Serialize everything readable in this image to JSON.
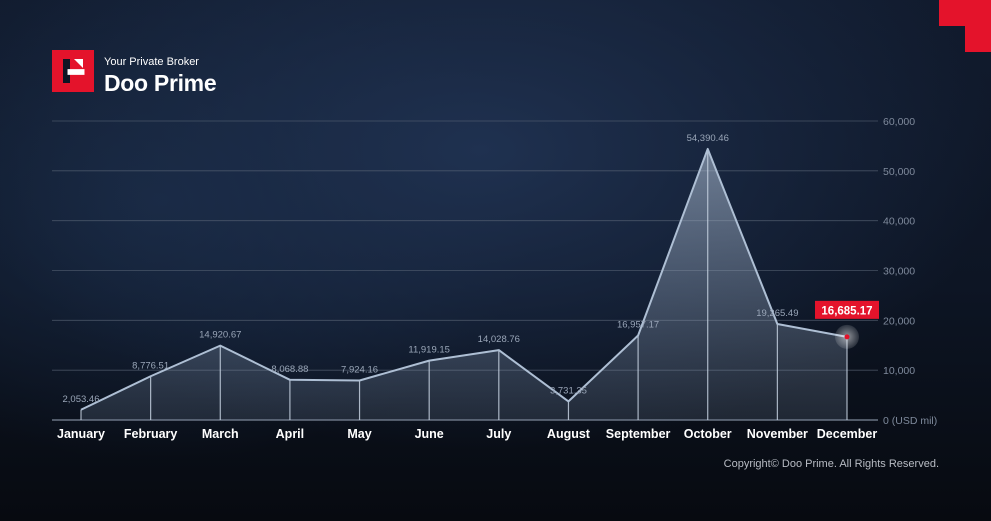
{
  "brand": {
    "tagline": "Your Private Broker",
    "name": "Doo Prime",
    "accent_color": "#e4132b"
  },
  "footer": {
    "copyright": "Copyright© Doo Prime. All Rights Reserved."
  },
  "chart_data": {
    "type": "area",
    "title": "",
    "xlabel": "",
    "ylabel": "",
    "y_unit_label": "0 (USD mil)",
    "ylim": [
      0,
      60000
    ],
    "y_ticks": [
      0,
      10000,
      20000,
      30000,
      40000,
      50000,
      60000
    ],
    "y_tick_labels": [
      "0 (USD mil)",
      "10,000",
      "20,000",
      "30,000",
      "40,000",
      "50,000",
      "60,000"
    ],
    "grid": true,
    "legend": "none",
    "categories": [
      "January",
      "February",
      "March",
      "April",
      "May",
      "June",
      "July",
      "August",
      "September",
      "October",
      "November",
      "December"
    ],
    "series": [
      {
        "values": [
          2053.46,
          8776.51,
          14920.67,
          8068.88,
          7924.16,
          11919.15,
          14028.76,
          3731.35,
          16957.17,
          54390.46,
          19265.49,
          16685.17
        ],
        "value_labels": [
          "2,053.46",
          "8,776.51",
          "14,920.67",
          "8,068.88",
          "7,924.16",
          "11,919.15",
          "14,028.76",
          "3,731.35",
          "16,957.17",
          "54,390.46",
          "19,265.49",
          "16,685.17"
        ]
      }
    ],
    "highlight_index": 11,
    "colors": {
      "line": "#aebfd4",
      "highlight_badge": "#e4132b",
      "value_label": "#9aa6b8",
      "axis_label": "#ffffff",
      "tick_label": "#7f8a9c",
      "grid": "#5b6678"
    }
  }
}
